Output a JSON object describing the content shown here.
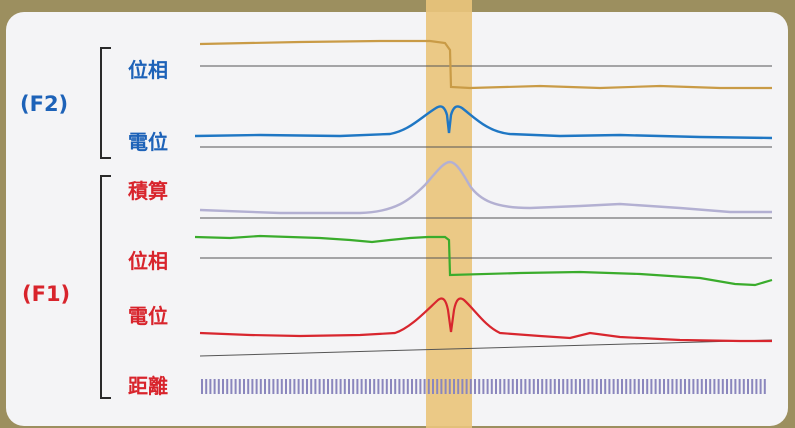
{
  "groups": {
    "f2": {
      "label": "(F2)"
    },
    "f1": {
      "label": "(F1)"
    }
  },
  "rows": {
    "f2_phase": "位相",
    "f2_potential": "電位",
    "f1_integral": "積算",
    "f1_phase": "位相",
    "f1_potential": "電位",
    "f1_distance": "距離"
  },
  "colors": {
    "background": "#9c8f5f",
    "panel": "#f4f4f6",
    "highlight": "#e9c47c",
    "blue_label": "#1d62b8",
    "red_label": "#d8242c",
    "f2_phase_trace": "#c99b46",
    "f2_potential_trace": "#1f77c4",
    "f1_integral_trace": "#b3b0d2",
    "f1_phase_trace": "#3aac2c",
    "f1_potential_trace": "#d8262e",
    "distance_ticks": "#8a86bd"
  }
}
